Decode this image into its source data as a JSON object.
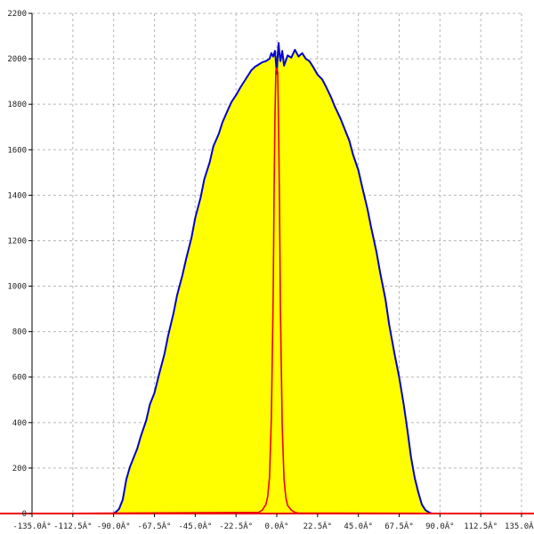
{
  "chart_data": {
    "type": "area",
    "title": "",
    "xlabel": "",
    "ylabel": "",
    "xlim": [
      -135,
      135
    ],
    "ylim": [
      0,
      2200
    ],
    "grid": true,
    "x_tick_values": [
      -135,
      -112.5,
      -90,
      -67.5,
      -45,
      -22.5,
      0,
      22.5,
      45,
      67.5,
      90,
      112.5,
      135
    ],
    "x_tick_labels": [
      "-135.0Â°",
      "-112.5Â°",
      "-90.0Â°",
      "-67.5Â°",
      "-45.0Â°",
      "-22.5Â°",
      "0.0Â°",
      "22.5Â°",
      "45.0Â°",
      "67.5Â°",
      "90.0Â°",
      "112.5Â°",
      "135.0Â°"
    ],
    "y_tick_values": [
      0,
      200,
      400,
      600,
      800,
      1000,
      1200,
      1400,
      1600,
      1800,
      2000,
      2200
    ],
    "y_tick_labels": [
      "0",
      "200",
      "400",
      "600",
      "800",
      "1000",
      "1200",
      "1400",
      "1600",
      "1800",
      "2000",
      "2200"
    ],
    "series": [
      {
        "fill": "#ffff00",
        "color": "#0000cc",
        "x": [
          -135,
          -90.5,
          -89,
          -87,
          -85,
          -83,
          -81,
          -79,
          -77,
          -75,
          -72,
          -70,
          -67.5,
          -65,
          -62,
          -60,
          -57,
          -55,
          -52,
          -50,
          -47,
          -45,
          -42,
          -40,
          -37,
          -35,
          -32,
          -30,
          -27,
          -25,
          -22.5,
          -20,
          -18,
          -16,
          -14,
          -12,
          -10,
          -8,
          -6,
          -4,
          -3,
          -2,
          -1,
          0,
          0.5,
          1,
          1.5,
          2,
          3,
          4,
          6,
          8,
          10,
          12,
          14,
          16,
          18,
          20,
          22.5,
          25,
          27,
          30,
          32,
          35,
          37,
          40,
          42,
          45,
          47,
          50,
          52,
          55,
          57,
          60,
          62,
          65,
          67.5,
          70,
          72,
          74,
          76,
          78,
          80,
          82,
          84,
          85.5,
          87,
          89,
          135
        ],
        "y": [
          0,
          0,
          5,
          20,
          60,
          150,
          205,
          245,
          285,
          340,
          410,
          480,
          530,
          610,
          700,
          780,
          880,
          960,
          1050,
          1120,
          1215,
          1300,
          1390,
          1470,
          1545,
          1615,
          1670,
          1720,
          1775,
          1810,
          1840,
          1875,
          1900,
          1925,
          1950,
          1965,
          1975,
          1985,
          1990,
          2000,
          2025,
          2010,
          2035,
          1935,
          2015,
          2070,
          2020,
          1990,
          2035,
          1970,
          2015,
          2005,
          2040,
          2010,
          2025,
          2000,
          1990,
          1965,
          1930,
          1910,
          1880,
          1830,
          1790,
          1740,
          1700,
          1640,
          1580,
          1510,
          1440,
          1340,
          1260,
          1150,
          1060,
          940,
          830,
          700,
          600,
          480,
          370,
          250,
          160,
          95,
          40,
          15,
          5,
          0,
          0,
          0,
          0
        ]
      },
      {
        "color": "#ee0000",
        "x": [
          -135,
          -10,
          -8,
          -6,
          -5,
          -4,
          -3,
          -2,
          -1.5,
          -1,
          -0.5,
          0,
          0.5,
          1,
          1.5,
          2,
          3,
          4,
          5,
          6,
          8,
          10,
          12,
          135
        ],
        "y": [
          0,
          5,
          15,
          40,
          75,
          160,
          420,
          950,
          1400,
          1750,
          1950,
          1960,
          1940,
          1700,
          1350,
          900,
          380,
          150,
          70,
          35,
          15,
          5,
          2,
          0
        ]
      }
    ]
  }
}
